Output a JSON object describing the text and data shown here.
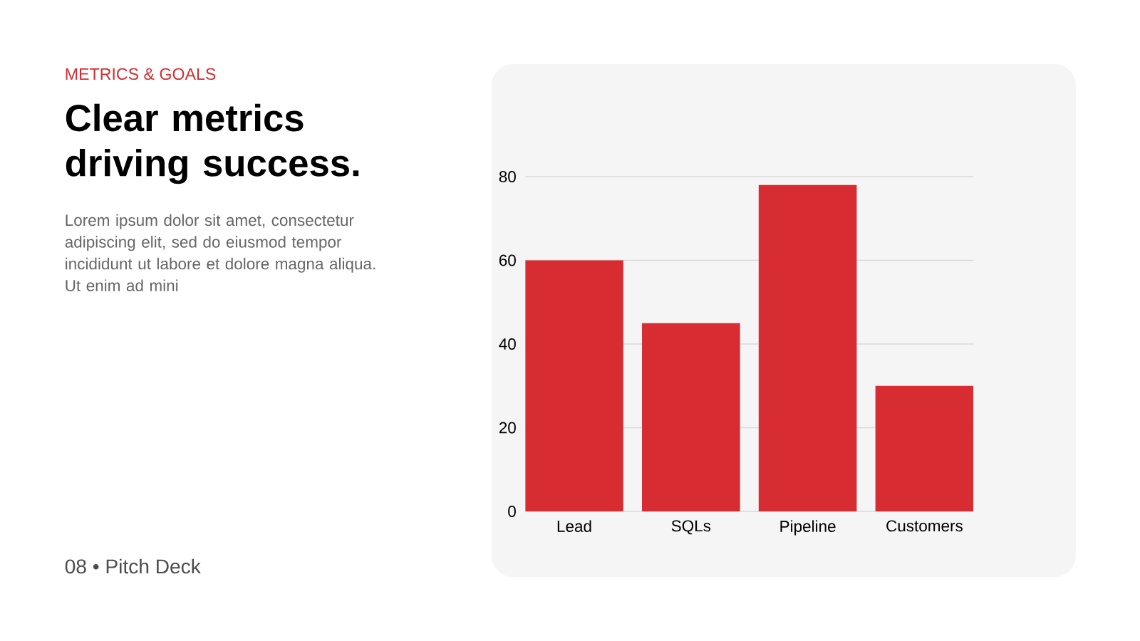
{
  "chart_data": {
    "type": "bar",
    "subtitle": "METRICS & GOALS",
    "title": "Clear metrics driving success.",
    "annotations": [
      "Lorem ipsum dolor sit amet, consectetur adipiscing elit, sed do eiusmod tempor incididunt ut labore et dolore magna aliqua. Ut enim ad mini",
      "08 • Pitch Deck"
    ],
    "categories": [
      "Lead",
      "SQLs",
      "Pipeline",
      "Customers"
    ],
    "values": [
      60,
      45,
      78,
      30
    ],
    "color": "#d62c32",
    "ylim": [
      0,
      80
    ],
    "yticks": [
      0,
      20,
      40,
      60,
      80
    ],
    "grid": "y"
  }
}
